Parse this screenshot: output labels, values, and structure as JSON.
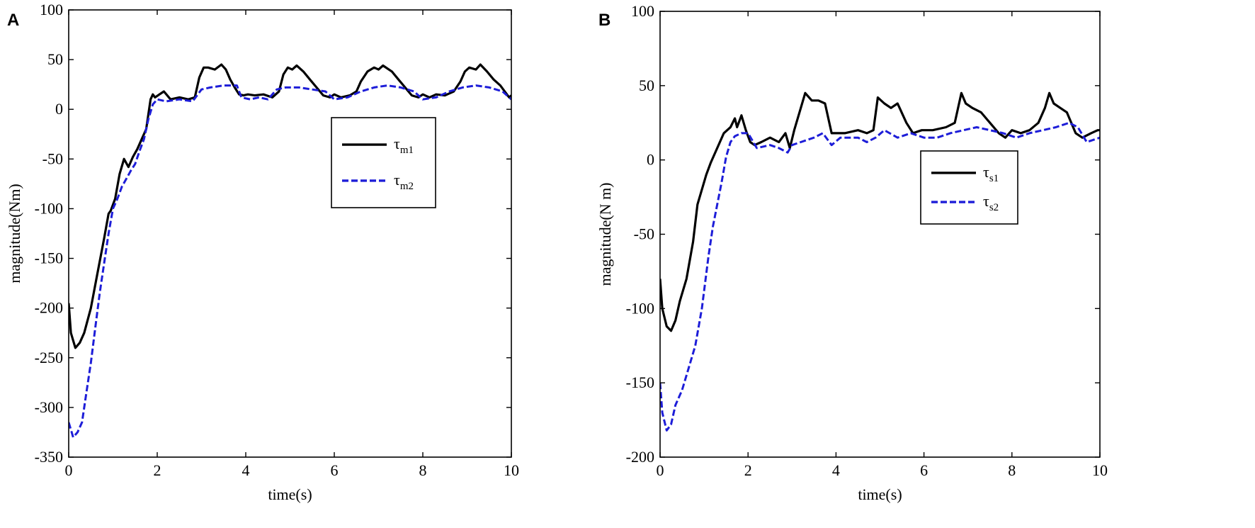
{
  "chart_data": [
    {
      "panel": "A",
      "type": "line",
      "xlabel": "time(s)",
      "ylabel": "magnitude(Nm)",
      "xlim": [
        0,
        10
      ],
      "ylim": [
        -350,
        100
      ],
      "xticks": [
        0,
        2,
        4,
        6,
        8,
        10
      ],
      "yticks": [
        -350,
        -300,
        -250,
        -200,
        -150,
        -100,
        -50,
        0,
        50,
        100
      ],
      "legend": {
        "placement": "right-middle"
      },
      "series": [
        {
          "legend_base": "τ",
          "legend_sub": "m1",
          "color": "#000000",
          "style": "solid",
          "x": [
            0,
            0.05,
            0.15,
            0.25,
            0.35,
            0.5,
            0.65,
            0.8,
            0.9,
            0.95,
            1.05,
            1.15,
            1.25,
            1.35,
            1.45,
            1.55,
            1.65,
            1.75,
            1.85,
            1.9,
            1.95,
            2.05,
            2.15,
            2.3,
            2.5,
            2.7,
            2.85,
            2.95,
            3.05,
            3.15,
            3.3,
            3.45,
            3.55,
            3.65,
            3.75,
            3.85,
            3.95,
            4.05,
            4.2,
            4.4,
            4.6,
            4.75,
            4.85,
            4.95,
            5.05,
            5.15,
            5.3,
            5.45,
            5.6,
            5.75,
            5.9,
            6.0,
            6.15,
            6.35,
            6.5,
            6.6,
            6.75,
            6.9,
            7.0,
            7.1,
            7.3,
            7.45,
            7.6,
            7.75,
            7.9,
            8.0,
            8.15,
            8.3,
            8.5,
            8.7,
            8.85,
            8.95,
            9.05,
            9.2,
            9.3,
            9.45,
            9.6,
            9.75,
            9.85,
            9.95,
            10.0
          ],
          "y": [
            -195,
            -225,
            -240,
            -235,
            -225,
            -200,
            -165,
            -130,
            -105,
            -102,
            -90,
            -65,
            -50,
            -58,
            -48,
            -40,
            -30,
            -20,
            10,
            15,
            12,
            15,
            18,
            10,
            12,
            10,
            12,
            32,
            42,
            42,
            40,
            45,
            40,
            30,
            22,
            15,
            14,
            15,
            14,
            15,
            12,
            18,
            35,
            42,
            40,
            44,
            38,
            30,
            22,
            14,
            12,
            15,
            12,
            14,
            18,
            28,
            38,
            42,
            40,
            44,
            38,
            30,
            22,
            14,
            12,
            15,
            12,
            15,
            14,
            18,
            28,
            38,
            42,
            40,
            45,
            38,
            30,
            24,
            18,
            12,
            14
          ]
        },
        {
          "legend_base": "τ",
          "legend_sub": "m2",
          "color": "#1d1dd8",
          "style": "dashed",
          "x": [
            0,
            0.1,
            0.2,
            0.3,
            0.4,
            0.5,
            0.6,
            0.7,
            0.8,
            0.9,
            1.0,
            1.1,
            1.2,
            1.3,
            1.4,
            1.5,
            1.6,
            1.7,
            1.8,
            1.9,
            2.0,
            2.2,
            2.5,
            2.8,
            3.0,
            3.2,
            3.5,
            3.8,
            3.9,
            4.1,
            4.3,
            4.5,
            4.7,
            4.9,
            5.2,
            5.5,
            5.8,
            6.0,
            6.3,
            6.6,
            6.9,
            7.2,
            7.5,
            7.8,
            8.0,
            8.3,
            8.6,
            8.9,
            9.2,
            9.5,
            9.8,
            10.0
          ],
          "y": [
            -315,
            -330,
            -325,
            -315,
            -285,
            -255,
            -220,
            -185,
            -155,
            -125,
            -100,
            -90,
            -78,
            -70,
            -62,
            -55,
            -42,
            -30,
            -10,
            5,
            10,
            8,
            10,
            8,
            20,
            22,
            24,
            24,
            12,
            10,
            12,
            10,
            20,
            22,
            22,
            20,
            18,
            10,
            12,
            18,
            22,
            24,
            22,
            18,
            10,
            12,
            18,
            22,
            24,
            22,
            18,
            10
          ]
        }
      ]
    },
    {
      "panel": "B",
      "type": "line",
      "xlabel": "time(s)",
      "ylabel": "magnitude(N m)",
      "xlim": [
        0,
        10
      ],
      "ylim": [
        -200,
        100
      ],
      "xticks": [
        0,
        2,
        4,
        6,
        8,
        10
      ],
      "yticks": [
        -200,
        -150,
        -100,
        -50,
        0,
        50,
        100
      ],
      "legend": {
        "placement": "right-middle"
      },
      "series": [
        {
          "legend_base": "τ",
          "legend_sub": "s1",
          "color": "#000000",
          "style": "solid",
          "x": [
            0,
            0.05,
            0.15,
            0.25,
            0.35,
            0.45,
            0.6,
            0.75,
            0.85,
            0.95,
            1.05,
            1.15,
            1.3,
            1.45,
            1.6,
            1.7,
            1.75,
            1.85,
            1.95,
            2.05,
            2.15,
            2.3,
            2.5,
            2.7,
            2.85,
            2.95,
            3.05,
            3.2,
            3.3,
            3.45,
            3.6,
            3.75,
            3.9,
            4.0,
            4.2,
            4.5,
            4.7,
            4.85,
            4.95,
            5.1,
            5.25,
            5.4,
            5.6,
            5.75,
            5.95,
            6.2,
            6.5,
            6.7,
            6.85,
            6.95,
            7.1,
            7.3,
            7.5,
            7.7,
            7.85,
            8.0,
            8.2,
            8.4,
            8.6,
            8.75,
            8.85,
            8.95,
            9.1,
            9.25,
            9.35,
            9.45,
            9.6,
            9.8,
            9.95,
            10.0
          ],
          "y": [
            -80,
            -100,
            -112,
            -115,
            -108,
            -95,
            -80,
            -55,
            -30,
            -20,
            -10,
            -2,
            8,
            18,
            22,
            28,
            22,
            30,
            20,
            12,
            10,
            12,
            15,
            12,
            18,
            8,
            20,
            35,
            45,
            40,
            40,
            38,
            18,
            18,
            18,
            20,
            18,
            20,
            42,
            38,
            35,
            38,
            25,
            18,
            20,
            20,
            22,
            25,
            45,
            38,
            35,
            32,
            25,
            18,
            15,
            20,
            18,
            20,
            25,
            35,
            45,
            38,
            35,
            32,
            25,
            18,
            15,
            18,
            20,
            20
          ]
        },
        {
          "legend_base": "τ",
          "legend_sub": "s2",
          "color": "#1d1dd8",
          "style": "dashed",
          "x": [
            0,
            0.05,
            0.15,
            0.25,
            0.35,
            0.5,
            0.65,
            0.8,
            0.95,
            1.1,
            1.2,
            1.3,
            1.4,
            1.5,
            1.6,
            1.7,
            1.85,
            2.0,
            2.2,
            2.5,
            2.7,
            2.9,
            3.0,
            3.2,
            3.5,
            3.7,
            3.9,
            4.1,
            4.3,
            4.5,
            4.7,
            4.9,
            5.1,
            5.4,
            5.7,
            6.0,
            6.3,
            6.6,
            6.9,
            7.2,
            7.5,
            7.8,
            8.1,
            8.4,
            8.7,
            9.0,
            9.3,
            9.5,
            9.7,
            10.0
          ],
          "y": [
            -150,
            -170,
            -182,
            -178,
            -165,
            -155,
            -140,
            -125,
            -100,
            -65,
            -45,
            -30,
            -15,
            2,
            12,
            16,
            18,
            18,
            8,
            10,
            8,
            5,
            10,
            12,
            15,
            18,
            10,
            15,
            15,
            15,
            12,
            15,
            20,
            15,
            18,
            15,
            15,
            18,
            20,
            22,
            20,
            18,
            15,
            18,
            20,
            22,
            25,
            22,
            12,
            15
          ]
        }
      ]
    }
  ]
}
